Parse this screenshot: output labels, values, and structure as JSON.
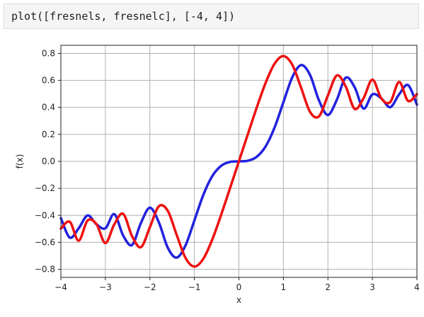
{
  "code": "plot([fresnels, fresnelc], [-4, 4])",
  "chart_data": {
    "type": "line",
    "xlabel": "x",
    "ylabel": "f(x)",
    "xlim": [
      -4,
      4
    ],
    "ylim": [
      -0.86,
      0.86
    ],
    "xticks": [
      -4,
      -3,
      -2,
      -1,
      0,
      1,
      2,
      3,
      4
    ],
    "xtick_labels": [
      "−4",
      "−3",
      "−2",
      "−1",
      "0",
      "1",
      "2",
      "3",
      "4"
    ],
    "yticks": [
      -0.8,
      -0.6,
      -0.4,
      -0.2,
      0.0,
      0.2,
      0.4,
      0.6,
      0.8
    ],
    "ytick_labels": [
      "−0.8",
      "−0.6",
      "−0.4",
      "−0.2",
      "0.0",
      "0.2",
      "0.4",
      "0.6",
      "0.8"
    ],
    "grid": true,
    "series": [
      {
        "name": "",
        "color": "#2222dd",
        "x": [
          -4.0,
          -3.8,
          -3.6,
          -3.4,
          -3.2,
          -3.0,
          -2.8,
          -2.6,
          -2.4,
          -2.2,
          -2.0,
          -1.8,
          -1.6,
          -1.4,
          -1.2,
          -1.0,
          -0.8,
          -0.6,
          -0.4,
          -0.2,
          0.0,
          0.2,
          0.4,
          0.6,
          0.8,
          1.0,
          1.2,
          1.4,
          1.6,
          1.8,
          2.0,
          2.2,
          2.4,
          2.6,
          2.8,
          3.0,
          3.2,
          3.4,
          3.6,
          3.8,
          4.0
        ],
        "values": [
          -0.4205,
          -0.5653,
          -0.4961,
          -0.4011,
          -0.4663,
          -0.4963,
          -0.3913,
          -0.55,
          -0.6197,
          -0.4557,
          -0.3434,
          -0.4509,
          -0.6389,
          -0.7135,
          -0.6234,
          -0.4383,
          -0.2493,
          -0.1105,
          -0.0334,
          -0.0042,
          0.0,
          0.0042,
          0.0334,
          0.1105,
          0.2493,
          0.4383,
          0.6234,
          0.7135,
          0.6389,
          0.4509,
          0.3434,
          0.4557,
          0.6197,
          0.55,
          0.3913,
          0.4963,
          0.4663,
          0.4011,
          0.4961,
          0.5653,
          0.4205
        ]
      },
      {
        "name": "",
        "color": "#ee1111",
        "x": [
          -4.0,
          -3.8,
          -3.6,
          -3.4,
          -3.2,
          -3.0,
          -2.8,
          -2.6,
          -2.4,
          -2.2,
          -2.0,
          -1.8,
          -1.6,
          -1.4,
          -1.2,
          -1.0,
          -0.8,
          -0.6,
          -0.4,
          -0.2,
          0.0,
          0.2,
          0.4,
          0.6,
          0.8,
          1.0,
          1.2,
          1.4,
          1.6,
          1.8,
          2.0,
          2.2,
          2.4,
          2.6,
          2.8,
          3.0,
          3.2,
          3.4,
          3.6,
          3.8,
          4.0
        ],
        "values": [
          -0.4984,
          -0.448,
          -0.588,
          -0.4385,
          -0.4663,
          -0.6057,
          -0.4675,
          -0.3889,
          -0.555,
          -0.6363,
          -0.4883,
          -0.3336,
          -0.3655,
          -0.5431,
          -0.7154,
          -0.7799,
          -0.7228,
          -0.5811,
          -0.3975,
          -0.1999,
          0.0,
          0.1999,
          0.3975,
          0.5811,
          0.7228,
          0.7799,
          0.7154,
          0.5431,
          0.3655,
          0.3336,
          0.4883,
          0.6363,
          0.555,
          0.3889,
          0.4675,
          0.6057,
          0.4663,
          0.4385,
          0.588,
          0.448,
          0.4984
        ]
      }
    ]
  }
}
